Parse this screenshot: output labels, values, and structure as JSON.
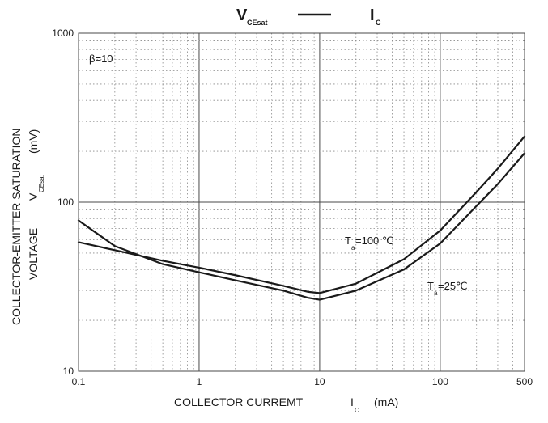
{
  "chart_data": {
    "type": "line",
    "title": {
      "left_main": "V",
      "left_sub": "CEsat",
      "right_main": "I",
      "right_sub": "C"
    },
    "xlabel": {
      "main": "COLLECTOR CURREMT",
      "symbol": "I",
      "symbol_sub": "C",
      "unit": "(mA)"
    },
    "ylabel": {
      "line1": "COLLECTOR-EMITTER SATURATION",
      "line2_prefix": "VOLTAGE",
      "symbol": "V",
      "symbol_sub": "CEsat",
      "unit": "(mV)"
    },
    "xscale": "log",
    "yscale": "log",
    "xlim": [
      0.1,
      500
    ],
    "ylim": [
      10,
      1000
    ],
    "x_ticks": [
      {
        "value": 0.1,
        "label": "0.1"
      },
      {
        "value": 1,
        "label": "1"
      },
      {
        "value": 10,
        "label": "10"
      },
      {
        "value": 100,
        "label": "100"
      },
      {
        "value": 500,
        "label": "500"
      }
    ],
    "y_ticks": [
      {
        "value": 10,
        "label": "10"
      },
      {
        "value": 100,
        "label": "100"
      },
      {
        "value": 1000,
        "label": "1000"
      }
    ],
    "grid": "major solid, minor dotted",
    "legend": "top-center",
    "annotations": {
      "beta": "β=10",
      "ta100_prefix": "T",
      "ta100_sub": "a",
      "ta100_value": "=100 ℃",
      "ta25_prefix": "T",
      "ta25_sub": "a",
      "ta25_value": "=25℃"
    },
    "series": [
      {
        "x": [
          0.1,
          0.2,
          0.5,
          1,
          2,
          5,
          8,
          10,
          20,
          50,
          100,
          200,
          300,
          500
        ],
        "y": [
          58,
          52,
          45,
          41,
          37,
          32,
          29.5,
          29,
          33,
          46,
          68,
          115,
          158,
          245
        ]
      },
      {
        "x": [
          0.1,
          0.2,
          0.5,
          1,
          2,
          5,
          8,
          10,
          20,
          50,
          100,
          200,
          300,
          500
        ],
        "y": [
          78,
          55,
          43,
          38.5,
          34.5,
          30,
          27.2,
          26.5,
          30,
          40,
          57,
          95,
          128,
          195
        ]
      }
    ],
    "colors": {
      "line": "#1a1a1a",
      "major_grid": "#4a4a4a",
      "minor_grid": "#8a8a8a",
      "frame": "#4a4a4a"
    }
  }
}
